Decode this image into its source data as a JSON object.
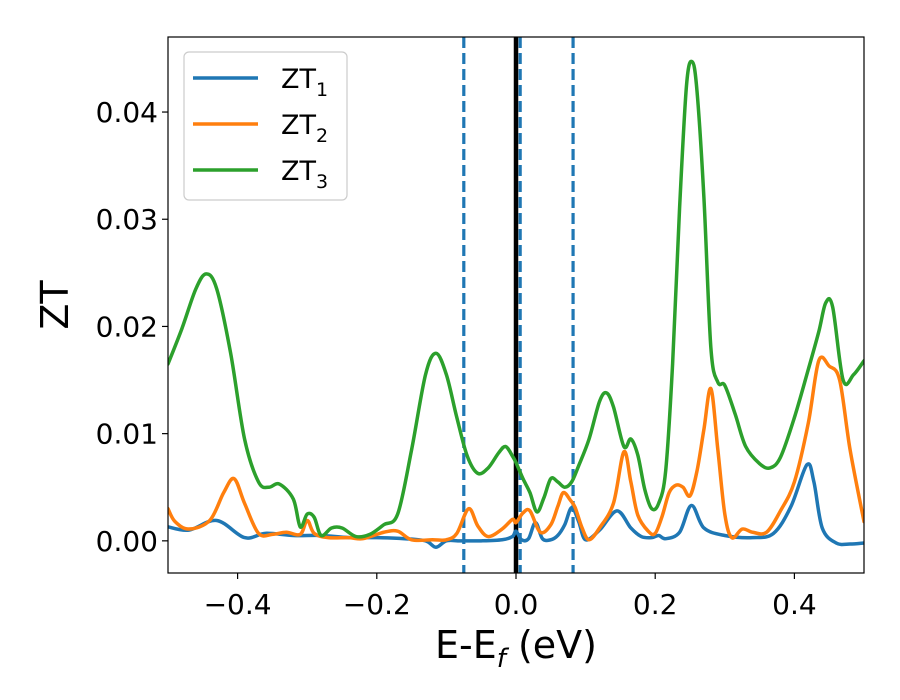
{
  "chart_data": {
    "type": "line",
    "title": "",
    "xlabel": "E-E",
    "xlabel_sub": "f",
    "xlabel_unit": " (eV)",
    "ylabel": "ZT",
    "xlim": [
      -0.5,
      0.5
    ],
    "ylim": [
      -0.003,
      0.047
    ],
    "x_ticks": [
      -0.4,
      -0.2,
      0.0,
      0.2,
      0.4
    ],
    "x_tick_labels": [
      "−0.4",
      "−0.2",
      "0.0",
      "0.2",
      "0.4"
    ],
    "y_ticks": [
      0.0,
      0.01,
      0.02,
      0.03,
      0.04
    ],
    "y_tick_labels": [
      "0.00",
      "0.01",
      "0.02",
      "0.03",
      "0.04"
    ],
    "grid": false,
    "legend_position": "top-left",
    "vertical_lines": [
      {
        "x": -0.075,
        "style": "dashed",
        "color": "#1f77b4"
      },
      {
        "x": 0.0,
        "style": "solid",
        "color": "#000000"
      },
      {
        "x": 0.006,
        "style": "dashed",
        "color": "#1f77b4"
      },
      {
        "x": 0.082,
        "style": "dashed",
        "color": "#1f77b4"
      }
    ],
    "series": [
      {
        "name": "ZT",
        "name_sub": "1",
        "color": "#1f77b4",
        "points": [
          [
            -0.5,
            0.0013
          ],
          [
            -0.47,
            0.001
          ],
          [
            -0.43,
            0.0019
          ],
          [
            -0.39,
            0.0003
          ],
          [
            -0.36,
            0.0007
          ],
          [
            -0.32,
            0.0005
          ],
          [
            -0.28,
            0.0005
          ],
          [
            -0.24,
            0.0003
          ],
          [
            -0.2,
            0.0003
          ],
          [
            -0.16,
            0.0002
          ],
          [
            -0.13,
            0.0
          ],
          [
            -0.115,
            -0.0006
          ],
          [
            -0.1,
            0.0
          ],
          [
            -0.08,
            0.0
          ],
          [
            -0.05,
            0.0
          ],
          [
            -0.02,
            0.0001
          ],
          [
            -0.005,
            0.0004
          ],
          [
            0.0,
            0.0009
          ],
          [
            0.008,
            0.0001
          ],
          [
            0.018,
            0.0002
          ],
          [
            0.028,
            0.0017
          ],
          [
            0.038,
            0.0002
          ],
          [
            0.05,
            0.0001
          ],
          [
            0.06,
            0.0005
          ],
          [
            0.07,
            0.0015
          ],
          [
            0.08,
            0.0031
          ],
          [
            0.09,
            0.0018
          ],
          [
            0.1,
            0.0001
          ],
          [
            0.12,
            0.001
          ],
          [
            0.145,
            0.0028
          ],
          [
            0.165,
            0.0012
          ],
          [
            0.18,
            0.0004
          ],
          [
            0.195,
            0.0003
          ],
          [
            0.205,
            0.0005
          ],
          [
            0.215,
            0.0002
          ],
          [
            0.235,
            0.0008
          ],
          [
            0.252,
            0.0033
          ],
          [
            0.27,
            0.0012
          ],
          [
            0.3,
            0.0005
          ],
          [
            0.34,
            0.0003
          ],
          [
            0.37,
            0.0007
          ],
          [
            0.395,
            0.0032
          ],
          [
            0.418,
            0.0071
          ],
          [
            0.428,
            0.0055
          ],
          [
            0.44,
            0.0012
          ],
          [
            0.46,
            -0.0002
          ],
          [
            0.48,
            -0.0003
          ],
          [
            0.5,
            -0.0002
          ]
        ]
      },
      {
        "name": "ZT",
        "name_sub": "2",
        "color": "#ff7f0e",
        "points": [
          [
            -0.5,
            0.003
          ],
          [
            -0.49,
            0.0018
          ],
          [
            -0.47,
            0.0011
          ],
          [
            -0.44,
            0.0019
          ],
          [
            -0.42,
            0.0045
          ],
          [
            -0.405,
            0.0058
          ],
          [
            -0.39,
            0.0035
          ],
          [
            -0.37,
            0.0007
          ],
          [
            -0.35,
            0.0006
          ],
          [
            -0.33,
            0.0008
          ],
          [
            -0.31,
            0.0006
          ],
          [
            -0.3,
            0.0019
          ],
          [
            -0.29,
            0.0007
          ],
          [
            -0.27,
            0.0003
          ],
          [
            -0.24,
            0.0003
          ],
          [
            -0.22,
            0.0002
          ],
          [
            -0.19,
            0.0008
          ],
          [
            -0.17,
            0.0009
          ],
          [
            -0.15,
            0.0001
          ],
          [
            -0.12,
            0.0001
          ],
          [
            -0.1,
            0.0001
          ],
          [
            -0.085,
            0.0007
          ],
          [
            -0.068,
            0.003
          ],
          [
            -0.055,
            0.0014
          ],
          [
            -0.04,
            0.0004
          ],
          [
            -0.02,
            0.0011
          ],
          [
            -0.005,
            0.002
          ],
          [
            0.0,
            0.0017
          ],
          [
            0.01,
            0.0026
          ],
          [
            0.02,
            0.0028
          ],
          [
            0.035,
            0.0008
          ],
          [
            0.05,
            0.0015
          ],
          [
            0.06,
            0.0032
          ],
          [
            0.068,
            0.0045
          ],
          [
            0.078,
            0.0038
          ],
          [
            0.085,
            0.0031
          ],
          [
            0.095,
            0.0012
          ],
          [
            0.105,
            0.0001
          ],
          [
            0.12,
            0.0012
          ],
          [
            0.14,
            0.0035
          ],
          [
            0.155,
            0.0083
          ],
          [
            0.165,
            0.0055
          ],
          [
            0.175,
            0.0024
          ],
          [
            0.19,
            0.0009
          ],
          [
            0.2,
            0.0007
          ],
          [
            0.21,
            0.0023
          ],
          [
            0.22,
            0.0045
          ],
          [
            0.23,
            0.0052
          ],
          [
            0.24,
            0.005
          ],
          [
            0.25,
            0.0042
          ],
          [
            0.26,
            0.0065
          ],
          [
            0.27,
            0.0104
          ],
          [
            0.28,
            0.0142
          ],
          [
            0.29,
            0.0085
          ],
          [
            0.3,
            0.0025
          ],
          [
            0.31,
            0.0003
          ],
          [
            0.325,
            0.0011
          ],
          [
            0.34,
            0.0008
          ],
          [
            0.36,
            0.0008
          ],
          [
            0.38,
            0.0028
          ],
          [
            0.4,
            0.0055
          ],
          [
            0.42,
            0.011
          ],
          [
            0.435,
            0.0168
          ],
          [
            0.45,
            0.0163
          ],
          [
            0.465,
            0.015
          ],
          [
            0.48,
            0.0085
          ],
          [
            0.5,
            0.0018
          ]
        ]
      },
      {
        "name": "ZT",
        "name_sub": "3",
        "color": "#2ca02c",
        "points": [
          [
            -0.5,
            0.0165
          ],
          [
            -0.48,
            0.0198
          ],
          [
            -0.46,
            0.0235
          ],
          [
            -0.445,
            0.0249
          ],
          [
            -0.43,
            0.0235
          ],
          [
            -0.41,
            0.0175
          ],
          [
            -0.39,
            0.0095
          ],
          [
            -0.37,
            0.0055
          ],
          [
            -0.355,
            0.005
          ],
          [
            -0.34,
            0.0053
          ],
          [
            -0.32,
            0.0039
          ],
          [
            -0.31,
            0.0013
          ],
          [
            -0.3,
            0.0025
          ],
          [
            -0.29,
            0.0022
          ],
          [
            -0.28,
            0.0005
          ],
          [
            -0.265,
            0.0012
          ],
          [
            -0.25,
            0.0012
          ],
          [
            -0.23,
            0.0004
          ],
          [
            -0.21,
            0.0006
          ],
          [
            -0.19,
            0.0015
          ],
          [
            -0.17,
            0.0025
          ],
          [
            -0.15,
            0.0085
          ],
          [
            -0.13,
            0.0155
          ],
          [
            -0.115,
            0.0175
          ],
          [
            -0.1,
            0.0155
          ],
          [
            -0.085,
            0.0115
          ],
          [
            -0.07,
            0.0079
          ],
          [
            -0.055,
            0.0063
          ],
          [
            -0.04,
            0.0068
          ],
          [
            -0.025,
            0.0082
          ],
          [
            -0.015,
            0.0088
          ],
          [
            -0.005,
            0.0079
          ],
          [
            0.0,
            0.0073
          ],
          [
            0.01,
            0.0058
          ],
          [
            0.02,
            0.0045
          ],
          [
            0.03,
            0.0027
          ],
          [
            0.04,
            0.004
          ],
          [
            0.05,
            0.0058
          ],
          [
            0.06,
            0.0055
          ],
          [
            0.07,
            0.005
          ],
          [
            0.08,
            0.0055
          ],
          [
            0.09,
            0.007
          ],
          [
            0.105,
            0.0095
          ],
          [
            0.12,
            0.013
          ],
          [
            0.13,
            0.0138
          ],
          [
            0.14,
            0.0125
          ],
          [
            0.155,
            0.0088
          ],
          [
            0.165,
            0.0095
          ],
          [
            0.175,
            0.008
          ],
          [
            0.185,
            0.0048
          ],
          [
            0.195,
            0.003
          ],
          [
            0.205,
            0.0035
          ],
          [
            0.215,
            0.0065
          ],
          [
            0.225,
            0.0165
          ],
          [
            0.235,
            0.031
          ],
          [
            0.245,
            0.0425
          ],
          [
            0.253,
            0.0447
          ],
          [
            0.26,
            0.042
          ],
          [
            0.27,
            0.032
          ],
          [
            0.28,
            0.018
          ],
          [
            0.29,
            0.0148
          ],
          [
            0.3,
            0.0145
          ],
          [
            0.315,
            0.0118
          ],
          [
            0.33,
            0.0088
          ],
          [
            0.35,
            0.0072
          ],
          [
            0.365,
            0.0068
          ],
          [
            0.38,
            0.0078
          ],
          [
            0.4,
            0.0115
          ],
          [
            0.42,
            0.016
          ],
          [
            0.435,
            0.0195
          ],
          [
            0.445,
            0.0222
          ],
          [
            0.455,
            0.0218
          ],
          [
            0.47,
            0.015
          ],
          [
            0.485,
            0.0155
          ],
          [
            0.5,
            0.0168
          ]
        ]
      }
    ]
  }
}
